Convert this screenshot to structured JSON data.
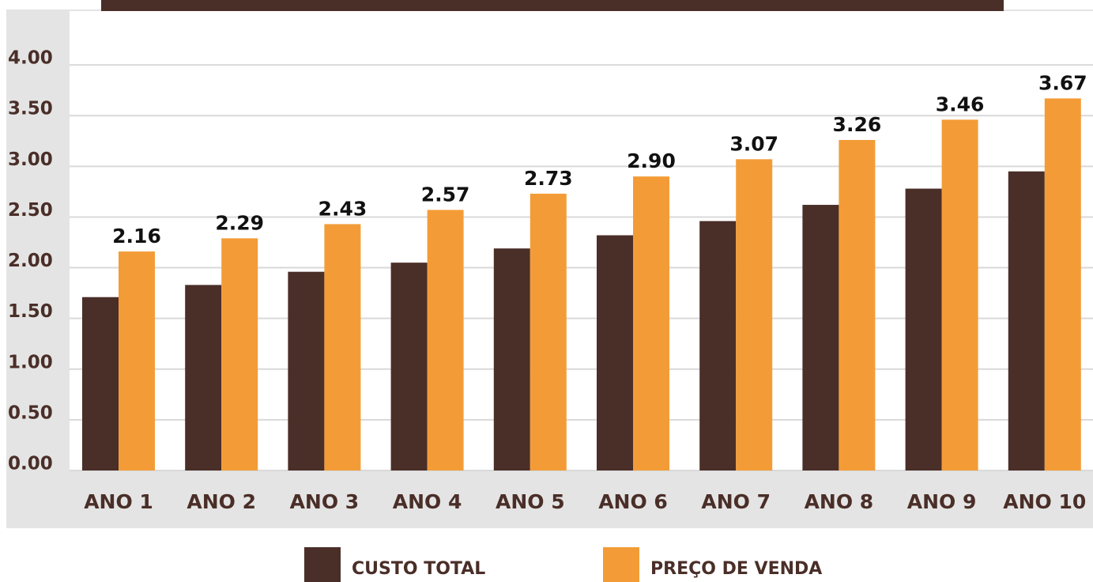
{
  "chart_data": {
    "type": "bar",
    "categories": [
      "ANO 1",
      "ANO 2",
      "ANO 3",
      "ANO 4",
      "ANO 5",
      "ANO 6",
      "ANO 7",
      "ANO 8",
      "ANO 9",
      "ANO 10"
    ],
    "series": [
      {
        "name": "CUSTO TOTAL",
        "color": "#4a2e28",
        "values": [
          1.71,
          1.83,
          1.96,
          2.05,
          2.19,
          2.32,
          2.46,
          2.62,
          2.78,
          2.95
        ]
      },
      {
        "name": "PREÇO DE VENDA",
        "color": "#f39c37",
        "values": [
          2.16,
          2.29,
          2.43,
          2.57,
          2.73,
          2.9,
          3.07,
          3.26,
          3.46,
          3.67
        ],
        "value_labels": [
          "2.16",
          "2.29",
          "2.43",
          "2.57",
          "2.73",
          "2.90",
          "3.07",
          "3.26",
          "3.46",
          "3.67"
        ]
      }
    ],
    "ylim": [
      0,
      4.5
    ],
    "yticks": [
      {
        "value": 0,
        "label": "0.00"
      },
      {
        "value": 0.5,
        "label": "0.50"
      },
      {
        "value": 1,
        "label": "1.00"
      },
      {
        "value": 1.5,
        "label": "1.50"
      },
      {
        "value": 2,
        "label": "2.00"
      },
      {
        "value": 2.5,
        "label": "2.50"
      },
      {
        "value": 3,
        "label": "3.00"
      },
      {
        "value": 3.5,
        "label": "3.50"
      },
      {
        "value": 4,
        "label": "4.00"
      }
    ],
    "grid": true
  }
}
